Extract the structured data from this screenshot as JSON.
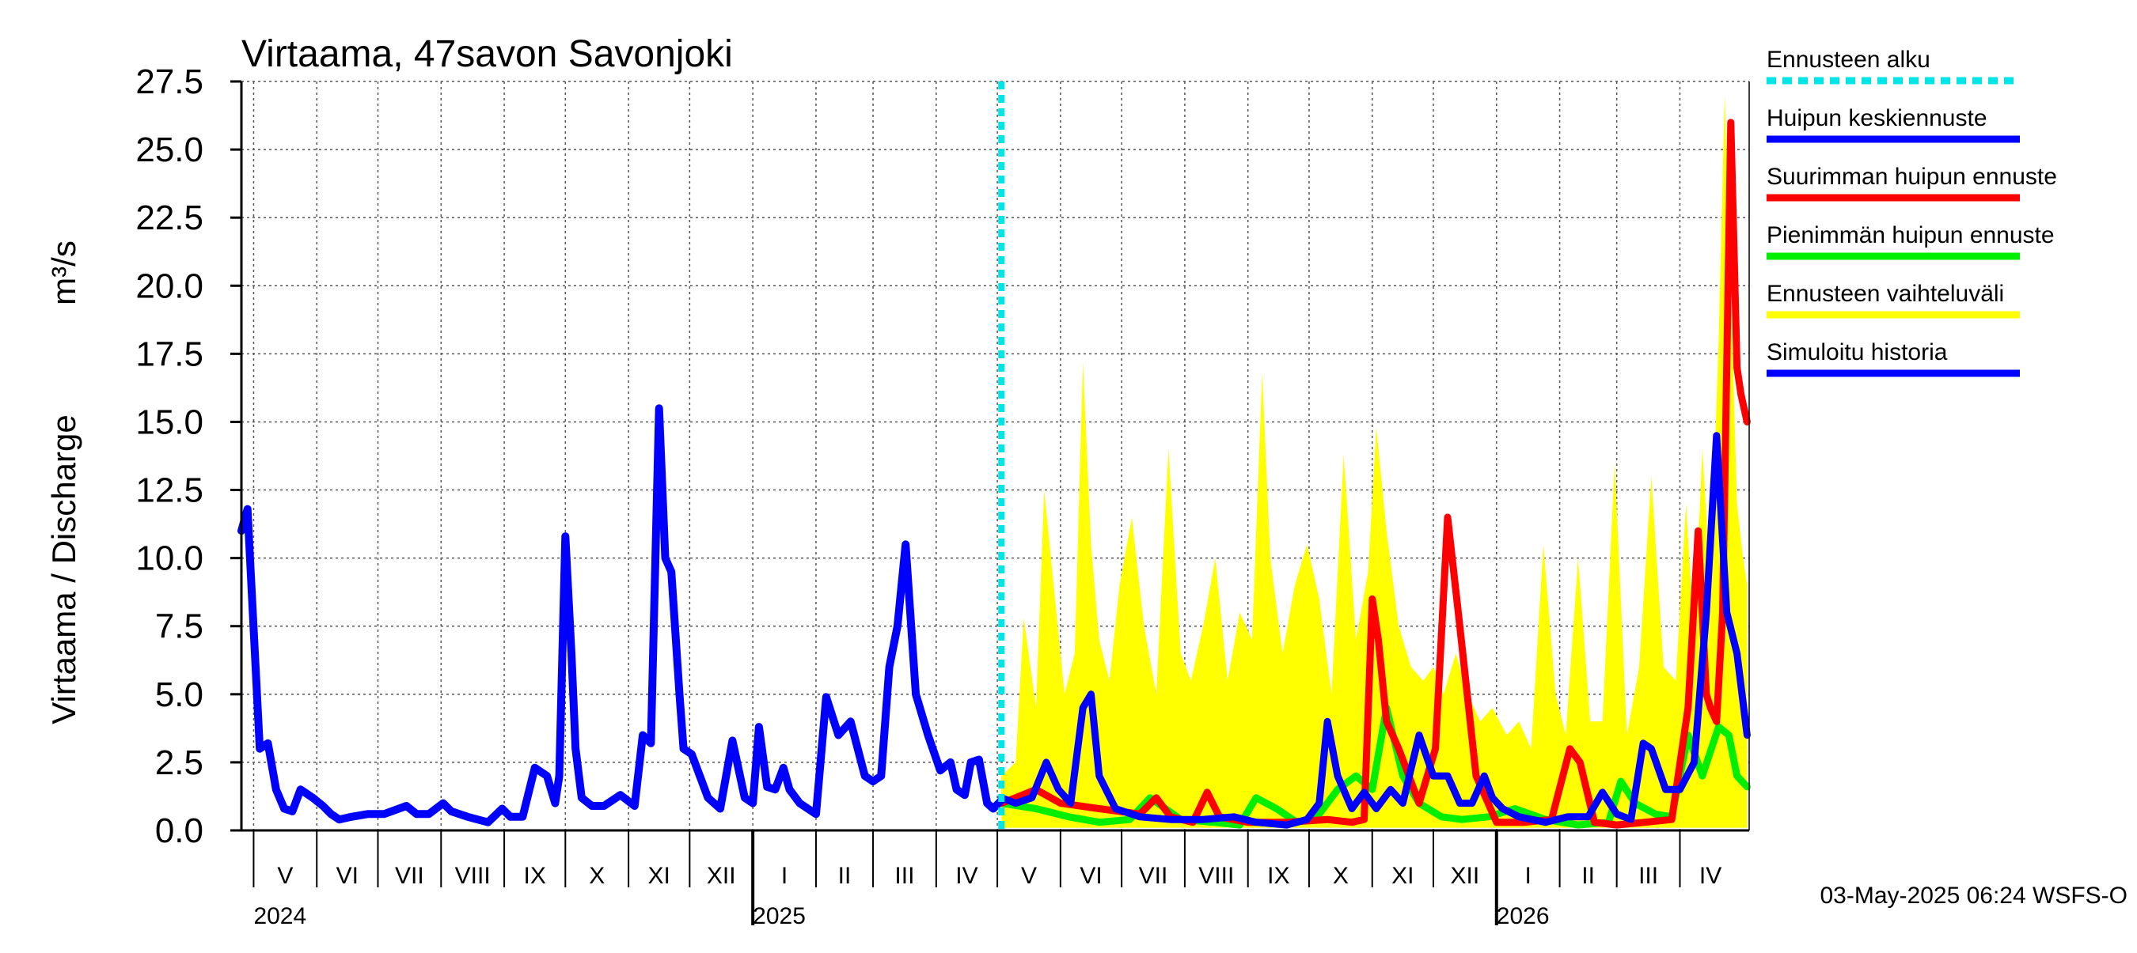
{
  "chart_data": {
    "type": "line",
    "title": "Virtaama, 47savon Savonjoki",
    "ylabel": "Virtaama / Discharge",
    "yunit": "m³/s",
    "ylim": [
      0,
      27.5
    ],
    "yticks": [
      "0.0",
      "2.5",
      "5.0",
      "7.5",
      "10.0",
      "12.5",
      "15.0",
      "17.5",
      "20.0",
      "22.5",
      "25.0",
      "27.5"
    ],
    "xlim": [
      "2024-04-25",
      "2026-05-05"
    ],
    "forecast_start": "2025-05-03",
    "grid": true,
    "legend_position": "right",
    "months": [
      {
        "label": "V",
        "start": "2024-05-01",
        "end": "2024-06-01"
      },
      {
        "label": "VI",
        "start": "2024-06-01",
        "end": "2024-07-01"
      },
      {
        "label": "VII",
        "start": "2024-07-01",
        "end": "2024-08-01"
      },
      {
        "label": "VIII",
        "start": "2024-08-01",
        "end": "2024-09-01"
      },
      {
        "label": "IX",
        "start": "2024-09-01",
        "end": "2024-10-01"
      },
      {
        "label": "X",
        "start": "2024-10-01",
        "end": "2024-11-01"
      },
      {
        "label": "XI",
        "start": "2024-11-01",
        "end": "2024-12-01"
      },
      {
        "label": "XII",
        "start": "2024-12-01",
        "end": "2025-01-01"
      },
      {
        "label": "I",
        "start": "2025-01-01",
        "end": "2025-02-01"
      },
      {
        "label": "II",
        "start": "2025-02-01",
        "end": "2025-03-01"
      },
      {
        "label": "III",
        "start": "2025-03-01",
        "end": "2025-04-01"
      },
      {
        "label": "IV",
        "start": "2025-04-01",
        "end": "2025-05-01"
      },
      {
        "label": "V",
        "start": "2025-05-01",
        "end": "2025-06-01"
      },
      {
        "label": "VI",
        "start": "2025-06-01",
        "end": "2025-07-01"
      },
      {
        "label": "VII",
        "start": "2025-07-01",
        "end": "2025-08-01"
      },
      {
        "label": "VIII",
        "start": "2025-08-01",
        "end": "2025-09-01"
      },
      {
        "label": "IX",
        "start": "2025-09-01",
        "end": "2025-10-01"
      },
      {
        "label": "X",
        "start": "2025-10-01",
        "end": "2025-11-01"
      },
      {
        "label": "XI",
        "start": "2025-11-01",
        "end": "2025-12-01"
      },
      {
        "label": "XII",
        "start": "2025-12-01",
        "end": "2026-01-01"
      },
      {
        "label": "I",
        "start": "2026-01-01",
        "end": "2026-02-01"
      },
      {
        "label": "II",
        "start": "2026-02-01",
        "end": "2026-03-01"
      },
      {
        "label": "III",
        "start": "2026-03-01",
        "end": "2026-04-01"
      },
      {
        "label": "IV",
        "start": "2026-04-01",
        "end": "2026-05-01"
      }
    ],
    "years": [
      {
        "label": "2024",
        "date": "2024-05-01"
      },
      {
        "label": "2025",
        "date": "2025-01-01"
      },
      {
        "label": "2026",
        "date": "2026-01-01"
      }
    ],
    "legend": [
      {
        "label": "Ennusteen alku",
        "color": "#00e5e5",
        "style": "dashed"
      },
      {
        "label": "Huipun keskiennuste",
        "color": "#0000ff",
        "style": "solid"
      },
      {
        "label": "Suurimman huipun ennuste",
        "color": "#ff0000",
        "style": "solid"
      },
      {
        "label": "Pienimmän huipun ennuste",
        "color": "#00ee00",
        "style": "solid"
      },
      {
        "label": "Ennusteen vaihteluväli",
        "color": "#ffff00",
        "style": "solid"
      },
      {
        "label": "Simuloitu historia",
        "color": "#0000ff",
        "style": "solid"
      }
    ],
    "series": [
      {
        "key": "band_upper",
        "color": "#ffff00",
        "x": [
          "2025-05-03",
          "2025-05-10",
          "2025-05-14",
          "2025-05-20",
          "2025-05-24",
          "2025-05-30",
          "2025-06-03",
          "2025-06-08",
          "2025-06-12",
          "2025-06-16",
          "2025-06-20",
          "2025-06-25",
          "2025-06-30",
          "2025-07-06",
          "2025-07-12",
          "2025-07-18",
          "2025-07-24",
          "2025-07-30",
          "2025-08-04",
          "2025-08-10",
          "2025-08-16",
          "2025-08-22",
          "2025-08-28",
          "2025-09-03",
          "2025-09-08",
          "2025-09-12",
          "2025-09-18",
          "2025-09-24",
          "2025-09-30",
          "2025-10-06",
          "2025-10-12",
          "2025-10-18",
          "2025-10-24",
          "2025-10-30",
          "2025-11-03",
          "2025-11-08",
          "2025-11-14",
          "2025-11-20",
          "2025-11-26",
          "2025-12-01",
          "2025-12-06",
          "2025-12-12",
          "2025-12-18",
          "2025-12-24",
          "2025-12-30",
          "2026-01-06",
          "2026-01-12",
          "2026-01-18",
          "2026-01-24",
          "2026-01-30",
          "2026-02-04",
          "2026-02-10",
          "2026-02-16",
          "2026-02-22",
          "2026-02-28",
          "2026-03-06",
          "2026-03-12",
          "2026-03-18",
          "2026-03-24",
          "2026-03-30",
          "2026-04-04",
          "2026-04-08",
          "2026-04-12",
          "2026-04-16",
          "2026-04-20",
          "2026-04-23",
          "2026-04-26",
          "2026-04-29",
          "2026-05-02",
          "2026-05-04"
        ],
        "values": [
          2.0,
          2.5,
          7.8,
          4.5,
          12.5,
          8.0,
          5.0,
          6.5,
          17.2,
          10.5,
          7.0,
          5.5,
          9.0,
          11.5,
          7.5,
          5.0,
          14.0,
          6.5,
          5.5,
          7.5,
          10.0,
          5.5,
          8.0,
          7.0,
          16.8,
          10.0,
          6.5,
          9.0,
          10.5,
          8.5,
          5.0,
          13.8,
          7.0,
          9.5,
          14.8,
          11.0,
          7.5,
          6.0,
          5.5,
          6.0,
          5.0,
          6.5,
          5.0,
          4.0,
          4.5,
          3.5,
          4.0,
          3.0,
          10.5,
          5.0,
          3.5,
          10.0,
          4.0,
          4.0,
          13.5,
          3.5,
          6.0,
          13.0,
          6.0,
          5.5,
          12.0,
          7.0,
          14.0,
          9.0,
          18.0,
          27.0,
          20.0,
          12.0,
          10.0,
          9.0
        ]
      },
      {
        "key": "band_lower",
        "color": "#ffff00",
        "x": [
          "2025-05-03",
          "2026-05-04"
        ],
        "values": [
          0.1,
          0.1
        ]
      },
      {
        "key": "max_peak",
        "name": "Suurimman huipun ennuste",
        "color": "#ff0000",
        "x": [
          "2025-05-03",
          "2025-05-10",
          "2025-05-20",
          "2025-06-01",
          "2025-06-20",
          "2025-07-10",
          "2025-07-18",
          "2025-07-25",
          "2025-08-05",
          "2025-08-12",
          "2025-08-18",
          "2025-09-01",
          "2025-09-20",
          "2025-10-10",
          "2025-10-22",
          "2025-10-28",
          "2025-11-01",
          "2025-11-04",
          "2025-11-08",
          "2025-11-14",
          "2025-11-24",
          "2025-12-02",
          "2025-12-08",
          "2025-12-14",
          "2025-12-22",
          "2026-01-01",
          "2026-01-15",
          "2026-01-28",
          "2026-02-06",
          "2026-02-11",
          "2026-02-18",
          "2026-03-01",
          "2026-03-15",
          "2026-03-28",
          "2026-04-05",
          "2026-04-10",
          "2026-04-14",
          "2026-04-16",
          "2026-04-19",
          "2026-04-22",
          "2026-04-26",
          "2026-04-29",
          "2026-05-01",
          "2026-05-04"
        ],
        "values": [
          1.0,
          1.2,
          1.5,
          1.0,
          0.8,
          0.6,
          1.2,
          0.5,
          0.3,
          1.4,
          0.5,
          0.3,
          0.3,
          0.4,
          0.3,
          0.4,
          8.5,
          7.0,
          4.0,
          3.0,
          1.0,
          3.0,
          11.5,
          7.5,
          2.0,
          0.3,
          0.3,
          0.4,
          3.0,
          2.5,
          0.3,
          0.2,
          0.3,
          0.4,
          4.5,
          11.0,
          5.0,
          4.5,
          4.0,
          8.0,
          26.0,
          17.0,
          16.0,
          15.0
        ]
      },
      {
        "key": "min_peak",
        "name": "Pienimmän huipun ennuste",
        "color": "#00ee00",
        "x": [
          "2025-05-03",
          "2025-05-20",
          "2025-06-05",
          "2025-06-20",
          "2025-07-05",
          "2025-07-15",
          "2025-07-30",
          "2025-08-15",
          "2025-08-28",
          "2025-09-05",
          "2025-09-15",
          "2025-09-25",
          "2025-10-05",
          "2025-10-15",
          "2025-10-24",
          "2025-11-01",
          "2025-11-08",
          "2025-11-16",
          "2025-11-24",
          "2025-12-05",
          "2025-12-15",
          "2025-12-28",
          "2026-01-10",
          "2026-01-25",
          "2026-02-10",
          "2026-02-25",
          "2026-03-03",
          "2026-03-10",
          "2026-03-20",
          "2026-03-28",
          "2026-04-05",
          "2026-04-12",
          "2026-04-20",
          "2026-04-25",
          "2026-04-29",
          "2026-05-04"
        ],
        "values": [
          1.0,
          0.8,
          0.5,
          0.3,
          0.4,
          1.2,
          0.4,
          0.3,
          0.2,
          1.2,
          0.8,
          0.3,
          0.5,
          1.5,
          2.0,
          1.5,
          4.5,
          2.0,
          1.0,
          0.5,
          0.4,
          0.5,
          0.8,
          0.4,
          0.2,
          0.3,
          1.8,
          1.0,
          0.6,
          0.5,
          3.5,
          2.0,
          3.8,
          3.5,
          2.0,
          1.6
        ]
      },
      {
        "key": "mean_peak",
        "name": "Huipun keskiennuste",
        "color": "#0000ff",
        "x": [
          "2025-05-03",
          "2025-05-10",
          "2025-05-18",
          "2025-05-25",
          "2025-05-31",
          "2025-06-06",
          "2025-06-12",
          "2025-06-16",
          "2025-06-20",
          "2025-06-28",
          "2025-07-10",
          "2025-07-25",
          "2025-08-10",
          "2025-08-25",
          "2025-09-05",
          "2025-09-20",
          "2025-09-30",
          "2025-10-06",
          "2025-10-10",
          "2025-10-15",
          "2025-10-22",
          "2025-10-28",
          "2025-11-03",
          "2025-11-10",
          "2025-11-16",
          "2025-11-24",
          "2025-12-01",
          "2025-12-08",
          "2025-12-14",
          "2025-12-20",
          "2025-12-26",
          "2025-12-30",
          "2026-01-04",
          "2026-01-12",
          "2026-01-25",
          "2026-02-05",
          "2026-02-15",
          "2026-02-22",
          "2026-03-01",
          "2026-03-08",
          "2026-03-14",
          "2026-03-18",
          "2026-03-25",
          "2026-04-01",
          "2026-04-08",
          "2026-04-14",
          "2026-04-19",
          "2026-04-24",
          "2026-04-29",
          "2026-05-04"
        ],
        "values": [
          1.2,
          1.0,
          1.2,
          2.5,
          1.5,
          1.0,
          4.5,
          5.0,
          2.0,
          0.8,
          0.5,
          0.4,
          0.4,
          0.5,
          0.3,
          0.2,
          0.4,
          1.0,
          4.0,
          2.0,
          0.8,
          1.4,
          0.8,
          1.5,
          1.0,
          3.5,
          2.0,
          2.0,
          1.0,
          1.0,
          2.0,
          1.2,
          0.8,
          0.5,
          0.3,
          0.5,
          0.5,
          1.4,
          0.6,
          0.4,
          3.2,
          3.0,
          1.5,
          1.5,
          2.5,
          8.0,
          14.5,
          8.0,
          6.5,
          3.5
        ]
      },
      {
        "key": "history",
        "name": "Simuloitu historia",
        "color": "#0000ff",
        "x": [
          "2024-04-25",
          "2024-04-28",
          "2024-05-04",
          "2024-05-08",
          "2024-05-12",
          "2024-05-16",
          "2024-05-20",
          "2024-05-24",
          "2024-05-30",
          "2024-06-04",
          "2024-06-08",
          "2024-06-12",
          "2024-06-18",
          "2024-06-26",
          "2024-07-04",
          "2024-07-15",
          "2024-07-20",
          "2024-07-26",
          "2024-08-02",
          "2024-08-06",
          "2024-08-14",
          "2024-08-24",
          "2024-08-31",
          "2024-09-04",
          "2024-09-10",
          "2024-09-16",
          "2024-09-22",
          "2024-09-26",
          "2024-09-28",
          "2024-10-01",
          "2024-10-04",
          "2024-10-06",
          "2024-10-09",
          "2024-10-14",
          "2024-10-20",
          "2024-10-28",
          "2024-11-04",
          "2024-11-08",
          "2024-11-12",
          "2024-11-16",
          "2024-11-19",
          "2024-11-22",
          "2024-11-26",
          "2024-11-28",
          "2024-12-02",
          "2024-12-06",
          "2024-12-10",
          "2024-12-16",
          "2024-12-22",
          "2024-12-28",
          "2025-01-01",
          "2025-01-04",
          "2025-01-08",
          "2025-01-12",
          "2025-01-16",
          "2025-01-19",
          "2025-01-24",
          "2025-01-28",
          "2025-02-01",
          "2025-02-06",
          "2025-02-12",
          "2025-02-18",
          "2025-02-25",
          "2025-03-01",
          "2025-03-05",
          "2025-03-09",
          "2025-03-13",
          "2025-03-17",
          "2025-03-22",
          "2025-03-28",
          "2025-04-03",
          "2025-04-08",
          "2025-04-11",
          "2025-04-15",
          "2025-04-18",
          "2025-04-22",
          "2025-04-26",
          "2025-04-29",
          "2025-05-03"
        ],
        "values": [
          11.0,
          11.8,
          3.0,
          3.2,
          1.5,
          0.8,
          0.7,
          1.5,
          1.2,
          0.9,
          0.6,
          0.4,
          0.5,
          0.6,
          0.6,
          0.9,
          0.6,
          0.6,
          1.0,
          0.7,
          0.5,
          0.3,
          0.8,
          0.5,
          0.5,
          2.3,
          2.0,
          1.0,
          2.0,
          10.8,
          6.5,
          3.0,
          1.2,
          0.9,
          0.9,
          1.3,
          0.9,
          3.5,
          3.2,
          15.5,
          10.0,
          9.5,
          5.0,
          3.0,
          2.8,
          2.0,
          1.2,
          0.8,
          3.3,
          1.2,
          1.0,
          3.8,
          1.6,
          1.5,
          2.3,
          1.5,
          1.0,
          0.8,
          0.6,
          4.9,
          3.5,
          4.0,
          2.0,
          1.8,
          2.0,
          6.0,
          7.5,
          10.5,
          5.0,
          3.5,
          2.2,
          2.5,
          1.5,
          1.3,
          2.5,
          2.6,
          1.0,
          0.8,
          1.1
        ]
      }
    ]
  },
  "footer": {
    "timestamp": "03-May-2025 06:24 WSFS-O"
  }
}
